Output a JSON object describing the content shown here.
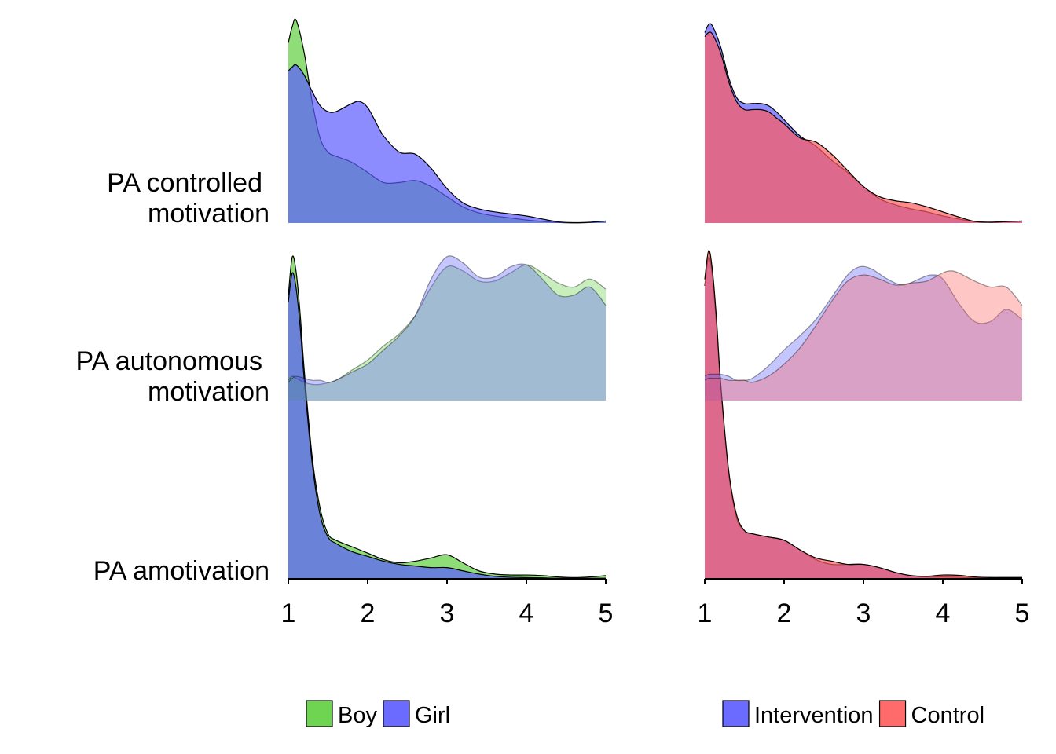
{
  "chart_data": [
    {
      "type": "area",
      "panel": "left",
      "xlim": [
        1,
        5
      ],
      "xticks": [
        "1",
        "2",
        "3",
        "4",
        "5"
      ],
      "categories": [
        "PA controlled motivation",
        "PA autonomous motivation",
        "PA amotivation"
      ],
      "category_lines": [
        [
          "PA controlled",
          "motivation"
        ],
        [
          "PA autonomous",
          "motivation"
        ],
        [
          "PA amotivation"
        ]
      ],
      "legend": {
        "position": "bottom",
        "entries": [
          "Boy",
          "Girl"
        ]
      },
      "series": [
        {
          "name": "Boy",
          "color": "#5ecf3f",
          "ridges": [
            {
              "x": [
                1,
                1.05,
                1.1,
                1.2,
                1.3,
                1.4,
                1.5,
                1.6,
                1.8,
                2,
                2.2,
                2.4,
                2.6,
                2.8,
                3,
                3.2,
                3.4,
                3.6,
                3.8,
                4,
                4.2,
                4.4,
                4.6,
                4.8,
                5
              ],
              "y": [
                0.89,
                0.97,
                1.0,
                0.84,
                0.6,
                0.42,
                0.35,
                0.33,
                0.3,
                0.25,
                0.2,
                0.2,
                0.21,
                0.18,
                0.13,
                0.08,
                0.05,
                0.035,
                0.025,
                0.015,
                0.008,
                0.003,
                0.001,
                0.003,
                0.01
              ]
            },
            {
              "x": [
                1,
                1.05,
                1.1,
                1.2,
                1.3,
                1.4,
                1.6,
                1.8,
                2,
                2.2,
                2.4,
                2.6,
                2.8,
                3,
                3.2,
                3.4,
                3.6,
                3.8,
                4,
                4.2,
                4.4,
                4.6,
                4.8,
                5
              ],
              "y": [
                0.1,
                0.12,
                0.11,
                0.09,
                0.08,
                0.08,
                0.1,
                0.15,
                0.2,
                0.27,
                0.33,
                0.42,
                0.56,
                0.66,
                0.64,
                0.59,
                0.59,
                0.63,
                0.67,
                0.63,
                0.58,
                0.56,
                0.6,
                0.55
              ]
            },
            {
              "x": [
                1,
                1.05,
                1.1,
                1.15,
                1.2,
                1.3,
                1.4,
                1.5,
                1.6,
                1.8,
                2,
                2.2,
                2.4,
                2.6,
                2.8,
                3,
                3.2,
                3.4,
                3.6,
                3.8,
                4,
                4.2,
                4.4,
                4.6,
                4.8,
                5
              ],
              "y": [
                0.88,
                1.0,
                0.95,
                0.82,
                0.65,
                0.38,
                0.22,
                0.14,
                0.12,
                0.1,
                0.08,
                0.06,
                0.05,
                0.055,
                0.065,
                0.075,
                0.05,
                0.025,
                0.015,
                0.012,
                0.012,
                0.01,
                0.006,
                0.004,
                0.006,
                0.01
              ]
            }
          ]
        },
        {
          "name": "Girl",
          "color": "#5b5bff",
          "ridges": [
            {
              "x": [
                1,
                1.05,
                1.1,
                1.2,
                1.3,
                1.4,
                1.5,
                1.6,
                1.8,
                1.9,
                2,
                2.1,
                2.2,
                2.4,
                2.6,
                2.8,
                3,
                3.2,
                3.4,
                3.6,
                3.8,
                4,
                4.2,
                4.4,
                4.6,
                4.8,
                5
              ],
              "y": [
                0.75,
                0.77,
                0.78,
                0.73,
                0.65,
                0.58,
                0.55,
                0.55,
                0.59,
                0.6,
                0.57,
                0.5,
                0.43,
                0.35,
                0.34,
                0.27,
                0.17,
                0.1,
                0.07,
                0.055,
                0.045,
                0.035,
                0.02,
                0.006,
                0.002,
                0.004,
                0.01
              ]
            },
            {
              "x": [
                1,
                1.05,
                1.1,
                1.2,
                1.3,
                1.4,
                1.5,
                1.6,
                1.8,
                2,
                2.2,
                2.4,
                2.6,
                2.8,
                3,
                3.2,
                3.4,
                3.6,
                3.8,
                4,
                4.2,
                4.4,
                4.6,
                4.8,
                5
              ],
              "y": [
                0.09,
                0.11,
                0.12,
                0.11,
                0.1,
                0.1,
                0.09,
                0.1,
                0.14,
                0.18,
                0.25,
                0.32,
                0.42,
                0.6,
                0.71,
                0.68,
                0.61,
                0.61,
                0.66,
                0.67,
                0.6,
                0.52,
                0.52,
                0.56,
                0.47
              ]
            },
            {
              "x": [
                1,
                1.05,
                1.1,
                1.15,
                1.2,
                1.3,
                1.4,
                1.5,
                1.6,
                1.8,
                2,
                2.2,
                2.4,
                2.6,
                2.8,
                3,
                3.2,
                3.4,
                3.6,
                3.8,
                4,
                4.2,
                4.4,
                4.6,
                4.8,
                5
              ],
              "y": [
                0.86,
                0.95,
                0.9,
                0.78,
                0.62,
                0.36,
                0.2,
                0.13,
                0.11,
                0.085,
                0.07,
                0.055,
                0.045,
                0.04,
                0.035,
                0.035,
                0.025,
                0.015,
                0.008,
                0.005,
                0.004,
                0.003,
                0.002,
                0.002,
                0.002,
                0.002
              ]
            }
          ]
        }
      ]
    },
    {
      "type": "area",
      "panel": "right",
      "xlim": [
        1,
        5
      ],
      "xticks": [
        "1",
        "2",
        "3",
        "4",
        "5"
      ],
      "categories": [
        "PA controlled motivation",
        "PA autonomous motivation",
        "PA amotivation"
      ],
      "legend": {
        "position": "bottom",
        "entries": [
          "Intervention",
          "Control"
        ]
      },
      "series": [
        {
          "name": "Intervention",
          "color": "#5b5bff",
          "ridges": [
            {
              "x": [
                1,
                1.05,
                1.1,
                1.2,
                1.3,
                1.4,
                1.5,
                1.6,
                1.7,
                1.8,
                1.9,
                2,
                2.2,
                2.4,
                2.6,
                2.8,
                3,
                3.2,
                3.4,
                3.6,
                3.8,
                4,
                4.2,
                4.4,
                4.6,
                4.8,
                5
              ],
              "y": [
                0.94,
                0.98,
                0.97,
                0.87,
                0.72,
                0.62,
                0.59,
                0.59,
                0.59,
                0.58,
                0.55,
                0.51,
                0.43,
                0.38,
                0.31,
                0.25,
                0.18,
                0.12,
                0.09,
                0.07,
                0.055,
                0.035,
                0.02,
                0.007,
                0.004,
                0.007,
                0.01
              ]
            },
            {
              "x": [
                1,
                1.05,
                1.1,
                1.2,
                1.3,
                1.4,
                1.5,
                1.6,
                1.8,
                2,
                2.2,
                2.4,
                2.6,
                2.8,
                2.95,
                3.1,
                3.3,
                3.5,
                3.7,
                3.85,
                4,
                4.2,
                4.4,
                4.6,
                4.8,
                5
              ],
              "y": [
                0.12,
                0.13,
                0.13,
                0.13,
                0.12,
                0.1,
                0.1,
                0.11,
                0.17,
                0.25,
                0.32,
                0.4,
                0.51,
                0.62,
                0.66,
                0.65,
                0.6,
                0.57,
                0.6,
                0.62,
                0.6,
                0.48,
                0.39,
                0.39,
                0.45,
                0.4
              ]
            },
            {
              "x": [
                1,
                1.05,
                1.1,
                1.15,
                1.2,
                1.3,
                1.4,
                1.5,
                1.6,
                1.8,
                2,
                2.2,
                2.4,
                2.6,
                2.8,
                3,
                3.2,
                3.4,
                3.6,
                3.8,
                4,
                4.2,
                4.4,
                4.6,
                4.8,
                5
              ],
              "y": [
                0.91,
                1.0,
                0.93,
                0.78,
                0.6,
                0.33,
                0.19,
                0.15,
                0.14,
                0.13,
                0.12,
                0.09,
                0.06,
                0.045,
                0.045,
                0.045,
                0.035,
                0.02,
                0.01,
                0.006,
                0.006,
                0.005,
                0.004,
                0.004,
                0.004,
                0.004
              ]
            }
          ]
        },
        {
          "name": "Control",
          "color": "#ff5b5b",
          "ridges": [
            {
              "x": [
                1,
                1.05,
                1.1,
                1.2,
                1.3,
                1.4,
                1.5,
                1.6,
                1.7,
                1.8,
                1.9,
                2,
                2.2,
                2.4,
                2.6,
                2.8,
                3,
                3.2,
                3.4,
                3.6,
                3.8,
                4,
                4.2,
                4.4,
                4.6,
                4.8,
                5
              ],
              "y": [
                0.92,
                0.94,
                0.93,
                0.84,
                0.7,
                0.6,
                0.56,
                0.56,
                0.56,
                0.55,
                0.52,
                0.49,
                0.42,
                0.4,
                0.34,
                0.26,
                0.18,
                0.13,
                0.11,
                0.1,
                0.08,
                0.055,
                0.03,
                0.008,
                0.004,
                0.007,
                0.01
              ]
            },
            {
              "x": [
                1,
                1.05,
                1.1,
                1.2,
                1.3,
                1.4,
                1.5,
                1.6,
                1.8,
                2,
                2.2,
                2.4,
                2.6,
                2.8,
                3,
                3.2,
                3.4,
                3.6,
                3.8,
                4,
                4.1,
                4.2,
                4.4,
                4.6,
                4.8,
                5
              ],
              "y": [
                0.1,
                0.11,
                0.11,
                0.11,
                0.1,
                0.1,
                0.1,
                0.09,
                0.12,
                0.18,
                0.26,
                0.37,
                0.49,
                0.59,
                0.62,
                0.6,
                0.57,
                0.58,
                0.59,
                0.63,
                0.64,
                0.63,
                0.59,
                0.56,
                0.56,
                0.47
              ]
            },
            {
              "x": [
                1,
                1.05,
                1.1,
                1.15,
                1.2,
                1.3,
                1.4,
                1.5,
                1.6,
                1.8,
                2,
                2.2,
                2.4,
                2.6,
                2.8,
                3,
                3.2,
                3.4,
                3.6,
                3.8,
                4,
                4.2,
                4.4,
                4.6,
                4.8,
                5
              ],
              "y": [
                0.93,
                1.02,
                0.95,
                0.8,
                0.61,
                0.34,
                0.2,
                0.15,
                0.14,
                0.13,
                0.12,
                0.09,
                0.065,
                0.055,
                0.045,
                0.045,
                0.035,
                0.02,
                0.01,
                0.008,
                0.012,
                0.011,
                0.006,
                0.004,
                0.004,
                0.004
              ]
            }
          ]
        }
      ]
    }
  ]
}
